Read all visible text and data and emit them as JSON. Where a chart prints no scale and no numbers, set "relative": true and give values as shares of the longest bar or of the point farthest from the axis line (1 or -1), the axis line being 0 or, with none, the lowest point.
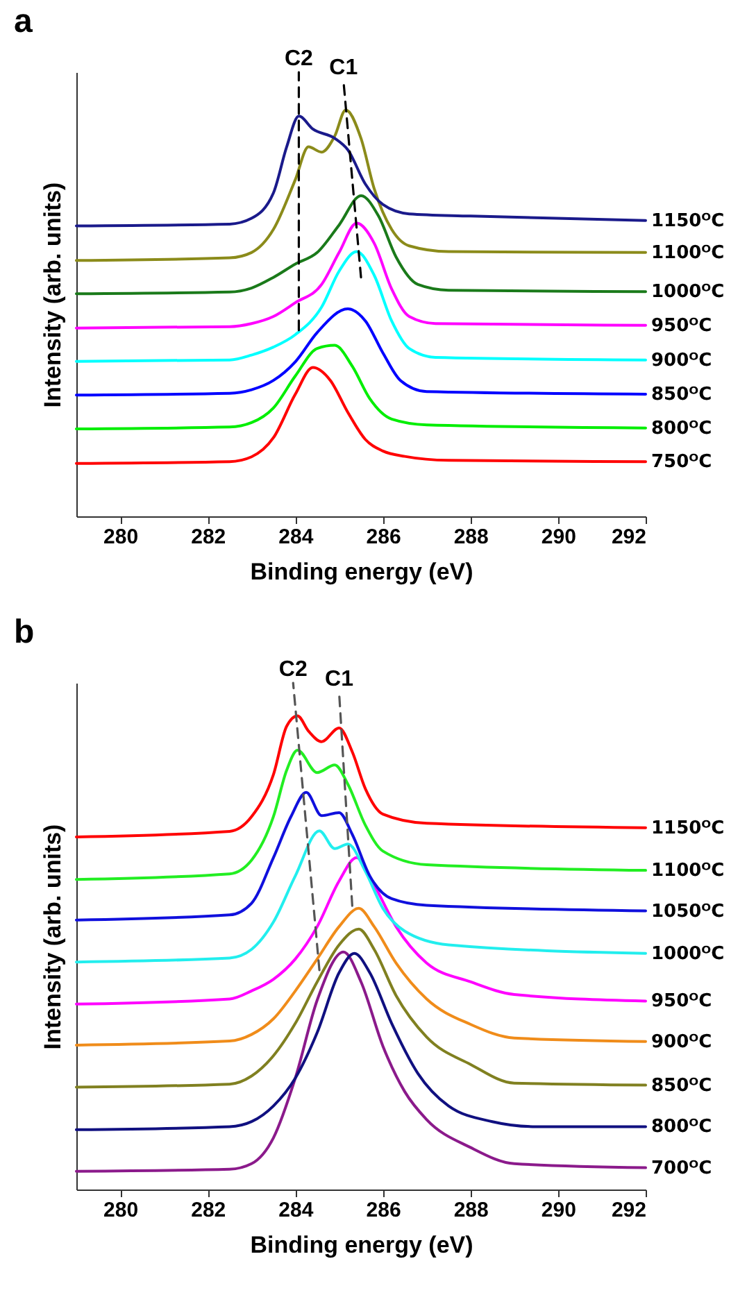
{
  "chart_data": [
    {
      "type": "line",
      "title": "a",
      "xlabel": "Binding energy (eV)",
      "ylabel": "Intensity (arb. units)",
      "relative": true,
      "xlim": [
        279,
        292
      ],
      "xticks": [
        280,
        282,
        284,
        286,
        288,
        290,
        292
      ],
      "annotations": [
        "C2",
        "C1"
      ],
      "series": [
        {
          "name": "750ᴼC",
          "color": "#ff0000",
          "x": [
            279,
            282.5,
            283,
            283.5,
            284,
            284.4,
            284.8,
            285.2,
            285.6,
            286,
            286.5,
            287.5,
            292
          ],
          "values": [
            0.119,
            0.123,
            0.134,
            0.177,
            0.275,
            0.335,
            0.306,
            0.234,
            0.173,
            0.147,
            0.135,
            0.126,
            0.123
          ]
        },
        {
          "name": "800ᴼC",
          "color": "#00ee00",
          "x": [
            279,
            282.5,
            283,
            283.5,
            284,
            284.5,
            284.9,
            285.3,
            285.7,
            286.2,
            287,
            292
          ],
          "values": [
            0.197,
            0.201,
            0.211,
            0.244,
            0.316,
            0.378,
            0.385,
            0.338,
            0.265,
            0.219,
            0.206,
            0.199
          ]
        },
        {
          "name": "850ᴼC",
          "color": "#0000ff",
          "x": [
            279,
            282.5,
            283,
            283.5,
            284,
            284.5,
            285.2,
            285.6,
            286,
            286.4,
            287,
            292
          ],
          "values": [
            0.273,
            0.277,
            0.285,
            0.306,
            0.348,
            0.414,
            0.467,
            0.44,
            0.368,
            0.306,
            0.281,
            0.275
          ]
        },
        {
          "name": "900ᴼC",
          "color": "#00ffff",
          "x": [
            279,
            282.5,
            283,
            283.5,
            284,
            284.6,
            285.0,
            285.4,
            285.8,
            286.2,
            286.6,
            287.2,
            292
          ],
          "values": [
            0.349,
            0.352,
            0.363,
            0.381,
            0.409,
            0.471,
            0.552,
            0.596,
            0.543,
            0.44,
            0.378,
            0.358,
            0.352
          ]
        },
        {
          "name": "950ᴼC",
          "color": "#ff00ff",
          "x": [
            279,
            282.5,
            283,
            283.5,
            284,
            284.6,
            285.0,
            285.4,
            285.8,
            286.2,
            286.6,
            287.2,
            292
          ],
          "values": [
            0.424,
            0.427,
            0.434,
            0.45,
            0.481,
            0.522,
            0.594,
            0.66,
            0.615,
            0.512,
            0.45,
            0.434,
            0.43
          ]
        },
        {
          "name": "1000ᴼC",
          "color": "#1a7a1a",
          "x": [
            279,
            282.5,
            283,
            283.5,
            284,
            284.5,
            285.0,
            285.5,
            285.9,
            286.3,
            286.8,
            287.5,
            292
          ],
          "values": [
            0.501,
            0.505,
            0.514,
            0.538,
            0.568,
            0.594,
            0.656,
            0.722,
            0.676,
            0.584,
            0.522,
            0.509,
            0.506
          ]
        },
        {
          "name": "1100ᴼC",
          "color": "#8b8b1a",
          "x": [
            279,
            282.5,
            283,
            283.5,
            284,
            284.3,
            284.6,
            284.9,
            285.15,
            285.5,
            285.8,
            286.2,
            286.6,
            287.5,
            292
          ],
          "values": [
            0.576,
            0.582,
            0.594,
            0.646,
            0.758,
            0.832,
            0.82,
            0.856,
            0.915,
            0.851,
            0.738,
            0.646,
            0.609,
            0.596,
            0.594
          ]
        },
        {
          "name": "1150ᴼC",
          "color": "#1a1a8b",
          "x": [
            279,
            282.5,
            283,
            283.5,
            283.8,
            284.08,
            284.4,
            284.9,
            285.2,
            285.6,
            286,
            286.6,
            288,
            292
          ],
          "values": [
            0.654,
            0.658,
            0.671,
            0.728,
            0.831,
            0.901,
            0.872,
            0.851,
            0.825,
            0.748,
            0.702,
            0.681,
            0.676,
            0.666
          ]
        },
        {
          "type": "line",
          "color": "#000000",
          "line_style": "dashed",
          "x": [
            284.08,
            284.08
          ],
          "values": [
            0.419,
            1
          ]
        },
        {
          "type": "line",
          "color": "#000000",
          "line_style": "dashed",
          "x": [
            285.5,
            285.1
          ],
          "values": [
            0.538,
            0.98
          ]
        }
      ]
    },
    {
      "type": "line",
      "title": "b",
      "xlabel": "Binding energy (eV)",
      "ylabel": "Intensity (arb. units)",
      "relative": true,
      "xlim": [
        279,
        292
      ],
      "xticks": [
        280,
        282,
        284,
        286,
        288,
        290,
        292
      ],
      "annotations": [
        "C2",
        "C1"
      ],
      "series": [
        {
          "name": "700ᴼC",
          "color": "#8b1a8b",
          "x": [
            279,
            282.5,
            283,
            283.5,
            284,
            284.5,
            285.1,
            285.5,
            286,
            286.5,
            287,
            288,
            289,
            292
          ],
          "values": [
            0.036,
            0.04,
            0.051,
            0.102,
            0.22,
            0.374,
            0.469,
            0.41,
            0.283,
            0.193,
            0.138,
            0.083,
            0.051,
            0.043
          ]
        },
        {
          "name": "800ᴼC",
          "color": "#101080",
          "x": [
            279,
            282.5,
            283,
            283.5,
            284,
            284.5,
            285.0,
            285.35,
            285.7,
            286.2,
            286.8,
            287.5,
            288.5,
            289.5,
            292
          ],
          "values": [
            0.118,
            0.124,
            0.134,
            0.165,
            0.22,
            0.31,
            0.428,
            0.466,
            0.428,
            0.328,
            0.229,
            0.165,
            0.134,
            0.124,
            0.124
          ]
        },
        {
          "name": "850ᴼC",
          "color": "#808020",
          "x": [
            279,
            282.5,
            283,
            283.5,
            284,
            284.5,
            285.0,
            285.45,
            285.8,
            286.3,
            287,
            288,
            289,
            292
          ],
          "values": [
            0.202,
            0.208,
            0.224,
            0.264,
            0.328,
            0.41,
            0.483,
            0.514,
            0.474,
            0.383,
            0.301,
            0.247,
            0.21,
            0.206
          ]
        },
        {
          "name": "900ᴼC",
          "color": "#f08c1a",
          "x": [
            279,
            282.5,
            283,
            283.5,
            284,
            284.5,
            285.0,
            285.45,
            285.8,
            286.3,
            287,
            288,
            289,
            292
          ],
          "values": [
            0.285,
            0.293,
            0.306,
            0.337,
            0.392,
            0.455,
            0.519,
            0.555,
            0.519,
            0.447,
            0.376,
            0.326,
            0.299,
            0.292
          ]
        },
        {
          "name": "950ᴼC",
          "color": "#ff00ff",
          "x": [
            279,
            282.5,
            283,
            283.5,
            284,
            284.5,
            285.0,
            285.4,
            285.8,
            286.3,
            287,
            288,
            289,
            292
          ],
          "values": [
            0.366,
            0.376,
            0.392,
            0.415,
            0.455,
            0.519,
            0.609,
            0.655,
            0.601,
            0.519,
            0.447,
            0.41,
            0.385,
            0.372
          ]
        },
        {
          "name": "1000ᴼC",
          "color": "#22eeee",
          "x": [
            279,
            282.5,
            283,
            283.5,
            284,
            284.55,
            284.9,
            285.2,
            285.6,
            286,
            286.5,
            287.5,
            292
          ],
          "values": [
            0.449,
            0.457,
            0.474,
            0.528,
            0.619,
            0.708,
            0.673,
            0.682,
            0.628,
            0.555,
            0.51,
            0.483,
            0.466
          ]
        },
        {
          "name": "1050ᴼC",
          "color": "#1010dd",
          "x": [
            279,
            282.5,
            283,
            283.5,
            283.9,
            284.25,
            284.6,
            285.0,
            285.3,
            285.7,
            286.2,
            287,
            292
          ],
          "values": [
            0.532,
            0.542,
            0.565,
            0.655,
            0.736,
            0.784,
            0.738,
            0.744,
            0.701,
            0.619,
            0.574,
            0.561,
            0.55
          ]
        },
        {
          "name": "1100ᴼC",
          "color": "#22ee22",
          "x": [
            279,
            282.5,
            283,
            283.5,
            283.8,
            284.05,
            284.5,
            284.9,
            285.2,
            285.6,
            286,
            287,
            292
          ],
          "values": [
            0.612,
            0.623,
            0.65,
            0.736,
            0.827,
            0.867,
            0.823,
            0.838,
            0.8,
            0.719,
            0.668,
            0.641,
            0.63
          ]
        },
        {
          "name": "1150ᴼC",
          "color": "#ff0000",
          "x": [
            279,
            282.5,
            283,
            283.5,
            283.8,
            284.05,
            284.3,
            284.6,
            285.0,
            285.3,
            285.6,
            286,
            287,
            292
          ],
          "values": [
            0.696,
            0.707,
            0.736,
            0.819,
            0.914,
            0.935,
            0.905,
            0.884,
            0.911,
            0.864,
            0.791,
            0.741,
            0.723,
            0.714
          ]
        },
        {
          "type": "line",
          "color": "#555555",
          "line_style": "dashed",
          "x": [
            284.55,
            283.95
          ],
          "values": [
            0.433,
            1
          ]
        },
        {
          "type": "line",
          "color": "#555555",
          "line_style": "dashed",
          "x": [
            285.3,
            285.0
          ],
          "values": [
            0.56,
            0.981
          ]
        }
      ]
    }
  ]
}
